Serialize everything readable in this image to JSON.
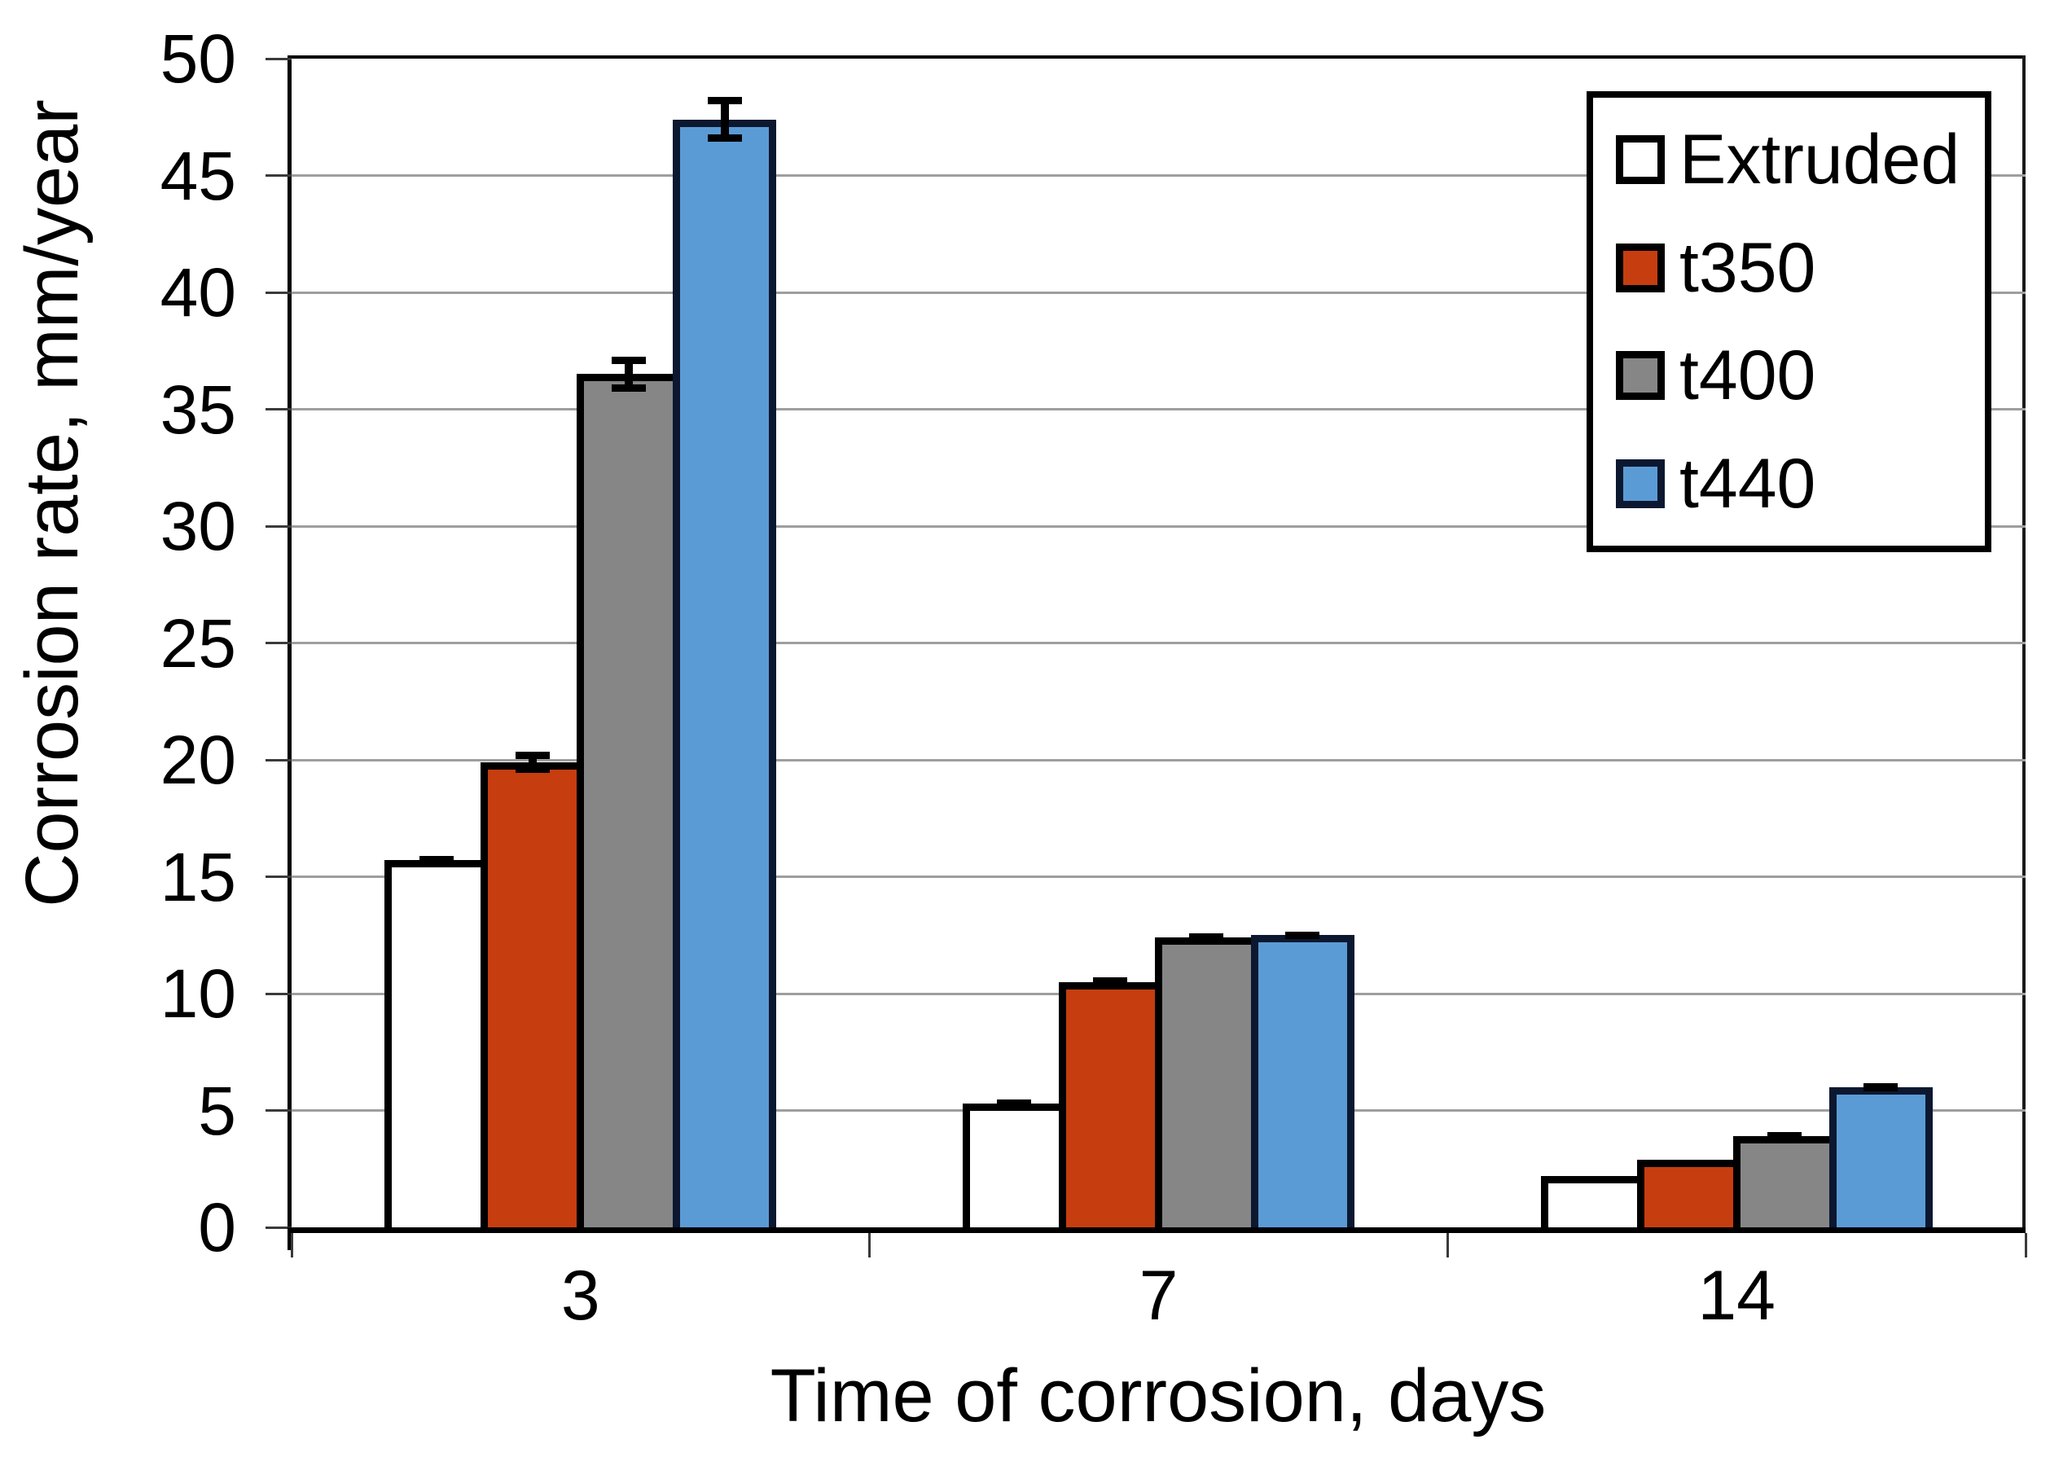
{
  "chart_data": {
    "type": "bar",
    "title": "",
    "xlabel": "Time of corrosion, days",
    "ylabel": "Corrosion rate, mm/year",
    "categories": [
      "3",
      "7",
      "14"
    ],
    "series": [
      {
        "name": "Extruded",
        "fill": "#ffffff",
        "border": "#000000",
        "values": [
          15.7,
          5.3,
          2.2
        ],
        "errors": [
          0.2,
          0.1,
          0
        ]
      },
      {
        "name": "t350",
        "fill": "#c63d0f",
        "border": "#000000",
        "values": [
          19.9,
          10.5,
          2.9
        ],
        "errors": [
          0.45,
          0.2,
          0
        ]
      },
      {
        "name": "t400",
        "fill": "#868686",
        "border": "#000000",
        "values": [
          36.5,
          12.4,
          3.9
        ],
        "errors": [
          0.75,
          0.15,
          0.1
        ]
      },
      {
        "name": "t440",
        "fill": "#5b9bd5",
        "border": "#0b1830",
        "values": [
          47.4,
          12.5,
          6.0
        ],
        "errors": [
          0.95,
          0.15,
          0.1
        ]
      }
    ],
    "ylim": [
      0,
      50
    ],
    "yticks": [
      0,
      5,
      10,
      15,
      20,
      25,
      30,
      35,
      40,
      45,
      50
    ],
    "grid": "horizontal-major",
    "gridline_color": "#9e9e9e",
    "axis_color": "#000000",
    "legend_position": "top-right",
    "error_bars": true
  }
}
